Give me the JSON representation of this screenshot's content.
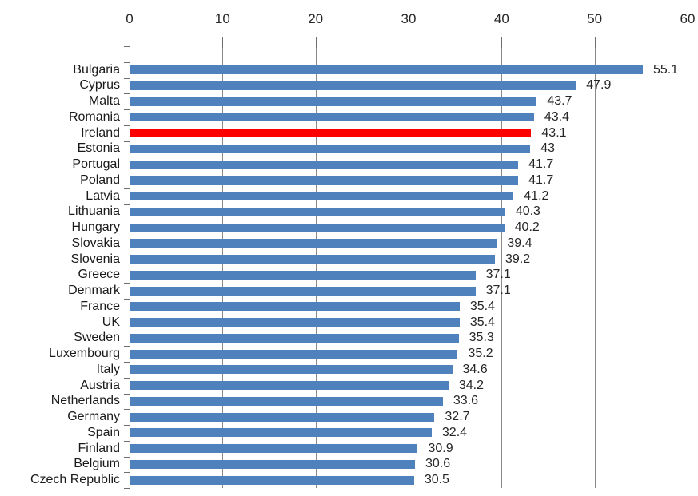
{
  "chart_data": {
    "type": "bar",
    "orientation": "horizontal",
    "title": "",
    "xlabel": "",
    "ylabel": "",
    "categories": [
      "Bulgaria",
      "Cyprus",
      "Malta",
      "Romania",
      "Ireland",
      "Estonia",
      "Portugal",
      "Poland",
      "Latvia",
      "Lithuania",
      "Hungary",
      "Slovakia",
      "Slovenia",
      "Greece",
      "Denmark",
      "France",
      "UK",
      "Sweden",
      "Luxembourg",
      "Italy",
      "Austria",
      "Netherlands",
      "Germany",
      "Spain",
      "Finland",
      "Belgium",
      "Czech Republic"
    ],
    "values": [
      55.1,
      47.9,
      43.7,
      43.4,
      43.1,
      43,
      41.7,
      41.7,
      41.2,
      40.3,
      40.2,
      39.4,
      39.2,
      37.1,
      37.1,
      35.4,
      35.4,
      35.3,
      35.2,
      34.6,
      34.2,
      33.6,
      32.7,
      32.4,
      30.9,
      30.6,
      30.5
    ],
    "value_labels": [
      "55.1",
      "47.9",
      "43.7",
      "43.4",
      "43.1",
      "43",
      "41.7",
      "41.7",
      "41.2",
      "40.3",
      "40.2",
      "39.4",
      "39.2",
      "37.1",
      "37.1",
      "35.4",
      "35.4",
      "35.3",
      "35.2",
      "34.6",
      "34.2",
      "33.6",
      "32.7",
      "32.4",
      "30.9",
      "30.6",
      "30.5"
    ],
    "highlight_category": "Ireland",
    "highlight_color": "#FF0000",
    "bar_color": "#4F81BD",
    "x_axis": {
      "position": "top",
      "min": 0,
      "max": 60,
      "tick_interval": 10,
      "tick_labels": [
        "0",
        "10",
        "20",
        "30",
        "40",
        "50",
        "60"
      ]
    },
    "grid": true,
    "legend": "none",
    "colors": {
      "gridline": "#8A8A8A",
      "axis": "#6E6E6E",
      "text": "#262626",
      "background": "#FFFFFF"
    }
  }
}
